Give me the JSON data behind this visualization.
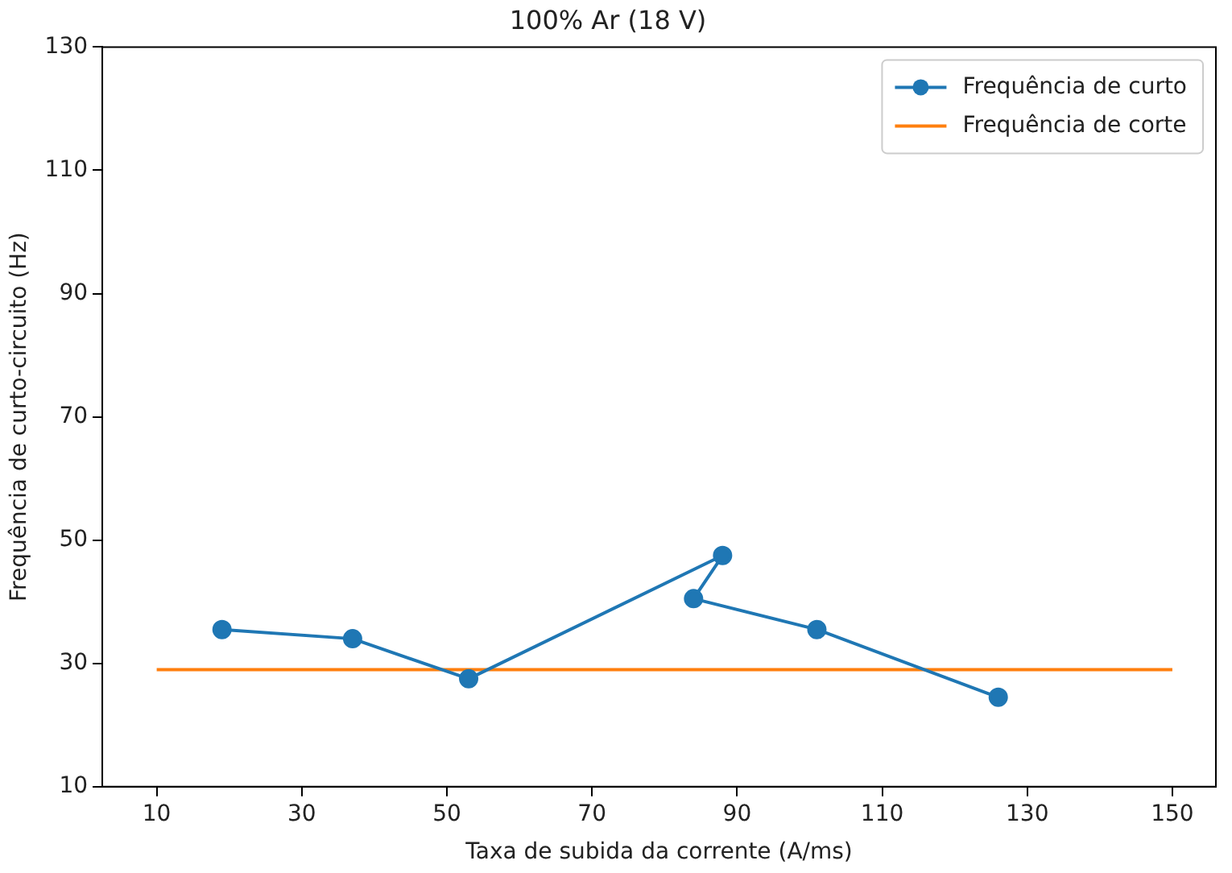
{
  "chart_data": {
    "type": "line",
    "title": "100% Ar (18 V)",
    "xlabel": "Taxa de subida da corrente (A/ms)",
    "ylabel": "Frequência de curto-circuito (Hz)",
    "series": [
      {
        "name": "Frequência de curto",
        "color": "#1f77b4",
        "marker": "circle",
        "x": [
          19,
          37,
          53,
          88,
          84,
          101,
          126
        ],
        "values": [
          35.5,
          34,
          27.5,
          47.5,
          40.5,
          35.5,
          24.5
        ]
      },
      {
        "name": "Frequência de corte",
        "color": "#ff7f0e",
        "marker": "none",
        "x": [
          10,
          150
        ],
        "values": [
          29,
          29
        ]
      }
    ],
    "xlim": [
      2.5,
      156
    ],
    "xticks": [
      10,
      30,
      50,
      70,
      90,
      110,
      130,
      150
    ],
    "ylim": [
      10,
      130
    ],
    "yticks": [
      10,
      30,
      50,
      70,
      90,
      110,
      130
    ],
    "grid": false,
    "legend": "top right",
    "line_style": "solid"
  }
}
